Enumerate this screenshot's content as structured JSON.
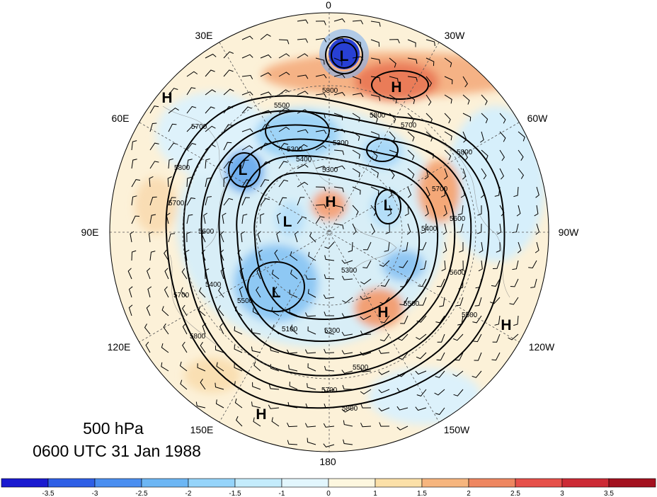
{
  "map": {
    "title_level": "500 hPa",
    "title_time": "0600 UTC 31 Jan 1988",
    "longitude_labels": [
      {
        "id": "lon-0",
        "text": "0"
      },
      {
        "id": "lon-30w",
        "text": "30W"
      },
      {
        "id": "lon-60w",
        "text": "60W"
      },
      {
        "id": "lon-90w",
        "text": "90W"
      },
      {
        "id": "lon-120w",
        "text": "120W"
      },
      {
        "id": "lon-150w",
        "text": "150W"
      },
      {
        "id": "lon-180",
        "text": "180"
      },
      {
        "id": "lon-150e",
        "text": "150E"
      },
      {
        "id": "lon-120e",
        "text": "120E"
      },
      {
        "id": "lon-90e",
        "text": "90E"
      },
      {
        "id": "lon-60e",
        "text": "60E"
      },
      {
        "id": "lon-30e",
        "text": "30E"
      }
    ],
    "pressure_centers": [
      {
        "type": "L",
        "label": "L"
      },
      {
        "type": "H",
        "label": "H"
      },
      {
        "type": "H",
        "label": "H"
      },
      {
        "type": "L",
        "label": "L"
      },
      {
        "type": "H",
        "label": "H"
      },
      {
        "type": "L",
        "label": "L"
      },
      {
        "type": "L",
        "label": "L"
      },
      {
        "type": "L",
        "label": "L"
      },
      {
        "type": "H",
        "label": "H"
      },
      {
        "type": "H",
        "label": "H"
      },
      {
        "type": "H",
        "label": "H"
      }
    ],
    "contour_labels": [
      {
        "text": "5800"
      },
      {
        "text": "5800"
      },
      {
        "text": "5700"
      },
      {
        "text": "5500"
      },
      {
        "text": "5700"
      },
      {
        "text": "5300"
      },
      {
        "text": "5400"
      },
      {
        "text": "5300"
      },
      {
        "text": "5300"
      },
      {
        "text": "5400"
      },
      {
        "text": "5700"
      },
      {
        "text": "5600"
      },
      {
        "text": "5800"
      },
      {
        "text": "5700"
      },
      {
        "text": "5800"
      },
      {
        "text": "5600"
      },
      {
        "text": "5700"
      },
      {
        "text": "5400"
      },
      {
        "text": "5300"
      },
      {
        "text": "5500"
      },
      {
        "text": "5800"
      },
      {
        "text": "5100"
      },
      {
        "text": "5500"
      },
      {
        "text": "5600"
      },
      {
        "text": "5500"
      },
      {
        "text": "5700"
      },
      {
        "text": "5800"
      },
      {
        "text": "5300"
      },
      {
        "text": "5500"
      }
    ]
  },
  "colorbar": {
    "labels": [
      "-3.5",
      "-3",
      "-2.5",
      "-2",
      "-1.5",
      "-1",
      "0",
      "1",
      "1.5",
      "2",
      "2.5",
      "3",
      "3.5"
    ],
    "colors": [
      "#1a1ad0",
      "#2e5fe6",
      "#4a8ef0",
      "#6cb6f4",
      "#95d4fa",
      "#c4ecfc",
      "#e2f6fd",
      "#fdf7df",
      "#fbe0a8",
      "#f6b57e",
      "#ee8660",
      "#e6504a",
      "#cc2a35",
      "#a3111f"
    ]
  }
}
